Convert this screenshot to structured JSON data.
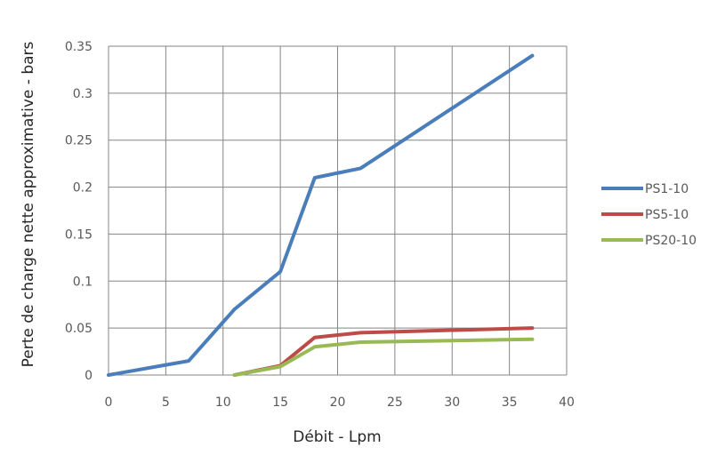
{
  "chart_data": {
    "type": "line",
    "title": "",
    "xlabel": "Débit - Lpm",
    "ylabel": "Perte de charge nette approximative - bars",
    "xlim": [
      0,
      40
    ],
    "ylim": [
      0,
      0.35
    ],
    "x_ticks": [
      "0",
      "5",
      "10",
      "15",
      "20",
      "25",
      "30",
      "35",
      "40"
    ],
    "y_ticks": [
      "0",
      "0.05",
      "0.1",
      "0.15",
      "0.2",
      "0.25",
      "0.3",
      "0.35"
    ],
    "grid": true,
    "legend_position": "right",
    "series": [
      {
        "name": "PS1-10",
        "color": "#4A7EBB",
        "points": [
          [
            0,
            0
          ],
          [
            7,
            0.015
          ],
          [
            11,
            0.07
          ],
          [
            15,
            0.11
          ],
          [
            18,
            0.21
          ],
          [
            22,
            0.22
          ],
          [
            37,
            0.34
          ]
        ]
      },
      {
        "name": "PS5-10",
        "color": "#BE4B48",
        "points": [
          [
            11,
            0
          ],
          [
            15,
            0.01
          ],
          [
            18,
            0.04
          ],
          [
            22,
            0.045
          ],
          [
            37,
            0.05
          ]
        ]
      },
      {
        "name": "PS20-10",
        "color": "#98B954",
        "points": [
          [
            11,
            0
          ],
          [
            15,
            0.009
          ],
          [
            18,
            0.03
          ],
          [
            22,
            0.035
          ],
          [
            37,
            0.038
          ]
        ]
      }
    ]
  }
}
